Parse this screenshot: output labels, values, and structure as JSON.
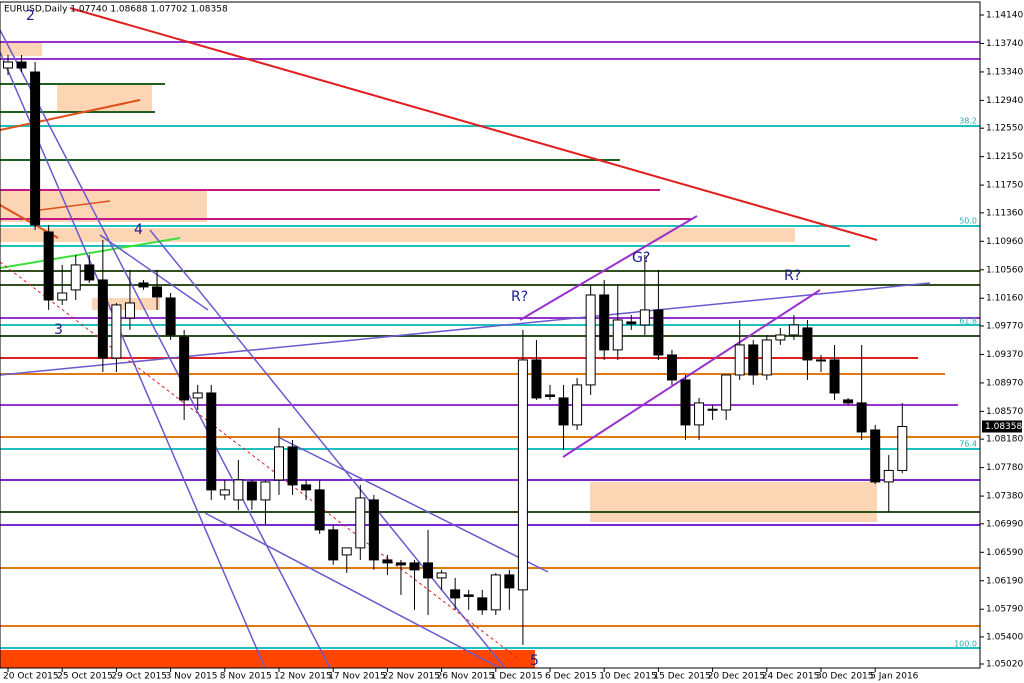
{
  "chart_data": {
    "type": "candlestick",
    "title": "EURUSD,Daily  1.07740 1.08688 1.07702 1.08358",
    "up_color": "#ffffff",
    "down_color": "#000000",
    "categories": [
      "20 Oct 2015",
      null,
      null,
      null,
      "25 Oct 2015",
      null,
      null,
      null,
      "29 Oct 2015",
      null,
      null,
      null,
      "3 Nov 2015",
      null,
      null,
      null,
      "8 Nov 2015",
      null,
      null,
      null,
      "12 Nov 2015",
      null,
      null,
      null,
      "17 Nov 2015",
      null,
      null,
      null,
      "22 Nov 2015",
      null,
      null,
      null,
      "26 Nov 2015",
      null,
      null,
      null,
      "1 Dec 2015",
      null,
      null,
      null,
      "6 Dec 2015",
      null,
      null,
      null,
      "10 Dec 2015",
      null,
      null,
      null,
      "15 Dec 2015",
      null,
      null,
      null,
      "20 Dec 2015",
      null,
      null,
      null,
      "24 Dec 2015",
      null,
      null,
      null,
      "30 Dec 2015",
      null,
      null,
      null,
      "5 Jan 2016",
      null,
      null
    ],
    "open": [
      1.13396,
      1.1348,
      1.13339,
      1.11091,
      1.10136,
      1.10277,
      1.10628,
      1.10417,
      1.09321,
      1.09883,
      1.10375,
      1.10319,
      1.10164,
      1.09616,
      1.08759,
      1.08829,
      1.07396,
      1.07326,
      1.07579,
      1.07326,
      1.07607,
      1.08071,
      1.07537,
      1.07467,
      1.06905,
      1.06553,
      1.06652,
      1.07326,
      1.06483,
      1.06441,
      1.06441,
      1.06441,
      1.0623,
      1.06062,
      1.05991,
      1.05949,
      1.05781,
      1.06272,
      1.06062,
      1.09293,
      1.08801,
      1.08759,
      1.0838,
      1.08942,
      1.10206,
      1.09434,
      1.09827,
      1.09785,
      1.09996,
      1.09363,
      1.09012,
      1.0838,
      1.0859,
      1.0859,
      1.09082,
      1.09504,
      1.09082,
      1.09574,
      1.09644,
      1.09743,
      1.09293,
      1.09293,
      1.08731,
      1.08689,
      1.08309,
      1.07579,
      1.0774
    ],
    "high": [
      1.13578,
      1.13578,
      1.1348,
      1.1119,
      1.10628,
      1.10768,
      1.10768,
      1.10979,
      1.10094,
      1.10558,
      1.10417,
      1.10558,
      1.10234,
      1.09715,
      1.08942,
      1.08942,
      1.07607,
      1.07888,
      1.07607,
      1.07607,
      1.08338,
      1.08169,
      1.07607,
      1.07607,
      1.06975,
      1.06652,
      1.07537,
      1.07396,
      1.06553,
      1.06483,
      1.06483,
      1.06905,
      1.06343,
      1.0623,
      1.06062,
      1.06062,
      1.063,
      1.06343,
      1.09715,
      1.09574,
      1.08942,
      1.08942,
      1.0904,
      1.10347,
      1.10417,
      1.10347,
      1.09925,
      1.10768,
      1.10558,
      1.09434,
      1.09082,
      1.08759,
      1.08661,
      1.09082,
      1.09855,
      1.09574,
      1.09644,
      1.09743,
      1.09925,
      1.09855,
      1.09363,
      1.09504,
      1.08759,
      1.09504,
      1.0838,
      1.07958,
      1.08688
    ],
    "low": [
      1.13297,
      1.13339,
      1.1112,
      1.09996,
      1.10066,
      1.10136,
      1.10375,
      1.09124,
      1.09124,
      1.09715,
      1.10277,
      1.09996,
      1.09574,
      1.0845,
      1.0859,
      1.07326,
      1.07326,
      1.07186,
      1.07186,
      1.06975,
      1.07396,
      1.07396,
      1.07326,
      1.0685,
      1.06413,
      1.063,
      1.06483,
      1.06343,
      1.06272,
      1.05991,
      1.05781,
      1.0571,
      1.06062,
      1.05781,
      1.05781,
      1.0571,
      1.0571,
      1.05781,
      1.05289,
      1.08731,
      1.08731,
      1.08029,
      1.08309,
      1.08801,
      1.09293,
      1.09293,
      1.09715,
      1.09644,
      1.09293,
      1.08942,
      1.08169,
      1.08169,
      1.0845,
      1.0845,
      1.09012,
      1.08942,
      1.09012,
      1.09504,
      1.09574,
      1.09012,
      1.09124,
      1.08731,
      1.08661,
      1.08169,
      1.07551,
      1.07157,
      1.07702
    ],
    "close": [
      1.1348,
      1.13396,
      1.1119,
      1.10136,
      1.10234,
      1.10628,
      1.10417,
      1.09321,
      1.10066,
      1.10094,
      1.10319,
      1.10178,
      1.09644,
      1.08731,
      1.08829,
      1.07467,
      1.07467,
      1.07607,
      1.07326,
      1.07579,
      1.08071,
      1.07537,
      1.07467,
      1.06905,
      1.06483,
      1.06652,
      1.07354,
      1.06483,
      1.06441,
      1.06413,
      1.06343,
      1.0623,
      1.063,
      1.05949,
      1.0597,
      1.05781,
      1.06272,
      1.0609,
      1.09293,
      1.08759,
      1.0878,
      1.0838,
      1.08942,
      1.10206,
      1.09434,
      1.09855,
      1.098,
      1.09996,
      1.09363,
      1.09012,
      1.0838,
      1.08689,
      1.086,
      1.09082,
      1.09504,
      1.09082,
      1.09574,
      1.09644,
      1.09785,
      1.09293,
      1.0928,
      1.08829,
      1.08689,
      1.08281,
      1.07579,
      1.0774,
      1.08358
    ],
    "ylim": [
      1.04964,
      1.14323
    ],
    "yticks": [
      {
        "value": 1.1414,
        "label": "1.14140"
      },
      {
        "value": 1.1374,
        "label": "1.13740"
      },
      {
        "value": 1.1334,
        "label": "1.13340"
      },
      {
        "value": 1.1294,
        "label": "1.12940"
      },
      {
        "value": 1.1255,
        "label": "1.12550"
      },
      {
        "value": 1.1215,
        "label": "1.12150"
      },
      {
        "value": 1.1175,
        "label": "1.11750"
      },
      {
        "value": 1.1136,
        "label": "1.11360"
      },
      {
        "value": 1.1096,
        "label": "1.10960"
      },
      {
        "value": 1.1056,
        "label": "1.10560"
      },
      {
        "value": 1.1016,
        "label": "1.10160"
      },
      {
        "value": 1.0977,
        "label": "1.09770"
      },
      {
        "value": 1.0937,
        "label": "1.09370"
      },
      {
        "value": 1.0897,
        "label": "1.08970"
      },
      {
        "value": 1.0857,
        "label": "1.08570"
      },
      {
        "value": 1.0818,
        "label": "1.08180"
      },
      {
        "value": 1.0778,
        "label": "1.07780"
      },
      {
        "value": 1.0738,
        "label": "1.07380"
      },
      {
        "value": 1.0699,
        "label": "1.06990"
      },
      {
        "value": 1.0659,
        "label": "1.06590"
      },
      {
        "value": 1.0619,
        "label": "1.06190"
      },
      {
        "value": 1.0579,
        "label": "1.05790"
      },
      {
        "value": 1.054,
        "label": "1.05400"
      },
      {
        "value": 1.0502,
        "label": "1.05020"
      }
    ],
    "current_price": {
      "value": 1.08358,
      "label": "1.08358"
    }
  },
  "annotations": [
    "2",
    "3",
    "4",
    "5",
    "R?",
    "G?",
    "R?"
  ],
  "fib_labels": [
    "38.2",
    "50.0",
    "61.8",
    "76.4",
    "100.0"
  ]
}
